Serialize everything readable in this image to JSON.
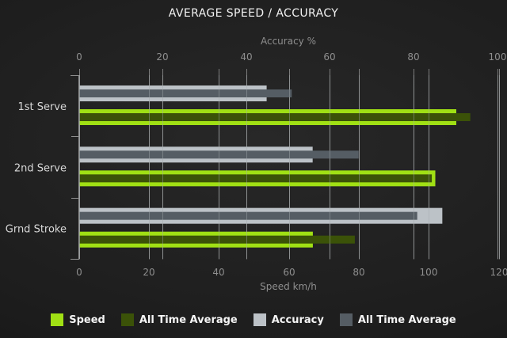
{
  "title": "AVERAGE SPEED / ACCURACY",
  "colors": {
    "background_center": "#282828",
    "background_edge": "#141414",
    "grid": "#7c7c7c",
    "grid_overlay_on_bars": "rgba(165,170,173,0.45)",
    "axis": "#909090",
    "tick_label": "#8e8e8e",
    "axis_title": "#8e8e8e",
    "category_label": "#d8d8d8",
    "title_text": "#f2f2f2",
    "legend_text": "#f5f5f5"
  },
  "chart_data": {
    "type": "bar",
    "orientation": "horizontal",
    "title": "AVERAGE SPEED / ACCURACY",
    "categories": [
      "1st Serve",
      "2nd Serve",
      "Grnd Stroke"
    ],
    "axes": {
      "top": {
        "label": "Accuracy %",
        "min": 0,
        "max": 100,
        "ticks": [
          0,
          20,
          40,
          60,
          80,
          100
        ]
      },
      "bottom": {
        "label": "Speed km/h",
        "min": 0,
        "max": 120,
        "ticks": [
          0,
          20,
          40,
          60,
          80,
          100,
          120
        ]
      }
    },
    "grid": true,
    "legend_position": "bottom",
    "series": [
      {
        "name": "Speed",
        "axis": "bottom",
        "bar": "thick",
        "color": "#a0e014",
        "values": [
          108,
          102,
          67
        ]
      },
      {
        "name": "All Time Average",
        "axis": "bottom",
        "bar": "thin",
        "color": "#3b5208",
        "values": [
          112,
          101,
          79
        ]
      },
      {
        "name": "Accuracy",
        "axis": "top",
        "bar": "thick",
        "color": "#bcc2c7",
        "values": [
          45,
          56,
          87
        ]
      },
      {
        "name": "All Time Average",
        "axis": "top",
        "bar": "thin",
        "color": "#555d64",
        "values": [
          51,
          67,
          81
        ]
      }
    ],
    "legend": [
      {
        "label": "Speed",
        "color": "#a0e014"
      },
      {
        "label": "All Time Average",
        "color": "#3b5208"
      },
      {
        "label": "Accuracy",
        "color": "#bcc2c7"
      },
      {
        "label": "All Time Average",
        "color": "#555d64"
      }
    ]
  }
}
